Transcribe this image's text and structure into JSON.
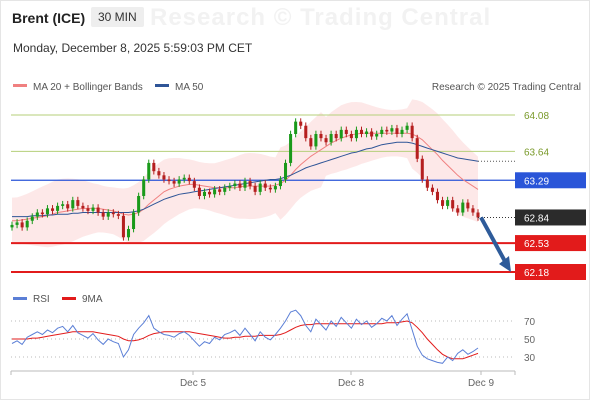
{
  "header": {
    "instrument": "Brent (ICE)",
    "interval": "30 MIN",
    "timestamp": "Monday, December 8, 2025 5:59:03 PM CET",
    "watermark": "Research © Trading Central",
    "copyright": "Research © 2025 Trading Central"
  },
  "legend": {
    "ma20": "MA 20 + Bollinger Bands",
    "ma50": "MA 50",
    "rsi": "RSI",
    "ma9": "9MA"
  },
  "colors": {
    "ma20": "#f08080",
    "ma50": "#2f5597",
    "band": "#fde4e4",
    "up": "#1a9a1a",
    "down": "#b51f1f",
    "resistance": "#b5cf7a",
    "pivot": "#2a55d8",
    "support": "#e21b1b",
    "arrow": "#2e5b9a",
    "rsi": "#5b7fd6",
    "rsi_ma": "#e21b1b"
  },
  "chart_data": [
    {
      "type": "candlestick",
      "x_ticks": [
        "Dec 5",
        "Dec 8",
        "Dec 9"
      ],
      "ylim": [
        62.1,
        64.1
      ],
      "levels": [
        {
          "value": 64.08,
          "label": "64.08",
          "kind": "resistance"
        },
        {
          "value": 63.64,
          "label": "63.64",
          "kind": "resistance"
        },
        {
          "value": 63.29,
          "label": "63.29",
          "kind": "pivot"
        },
        {
          "value": 62.53,
          "label": "62.53",
          "kind": "support"
        },
        {
          "value": 62.18,
          "label": "62.18",
          "kind": "support"
        }
      ],
      "last_price": {
        "value": 62.84,
        "label": "62.84"
      },
      "arrow": {
        "from": 62.84,
        "to": 62.18
      },
      "close": [
        62.75,
        62.78,
        62.72,
        62.8,
        62.85,
        62.9,
        62.88,
        62.95,
        62.92,
        62.98,
        63.0,
        62.95,
        63.05,
        62.98,
        62.95,
        62.92,
        62.96,
        62.9,
        62.85,
        62.9,
        62.88,
        62.86,
        62.6,
        62.7,
        62.9,
        63.1,
        63.3,
        63.5,
        63.4,
        63.35,
        63.3,
        63.28,
        63.25,
        63.3,
        63.32,
        63.28,
        63.2,
        63.1,
        63.15,
        63.12,
        63.18,
        63.15,
        63.2,
        63.22,
        63.25,
        63.2,
        63.28,
        63.22,
        63.15,
        63.25,
        63.2,
        63.18,
        63.22,
        63.3,
        63.5,
        63.85,
        64.0,
        63.95,
        63.8,
        63.7,
        63.85,
        63.8,
        63.75,
        63.85,
        63.8,
        63.9,
        63.85,
        63.8,
        63.9,
        63.85,
        63.88,
        63.82,
        63.85,
        63.9,
        63.88,
        63.92,
        63.85,
        63.9,
        63.95,
        63.8,
        63.55,
        63.3,
        63.2,
        63.15,
        63.05,
        62.98,
        63.05,
        62.95,
        62.9,
        63.02,
        62.95,
        62.9,
        62.84
      ],
      "open": [
        62.72,
        62.75,
        62.78,
        62.72,
        62.8,
        62.85,
        62.9,
        62.88,
        62.95,
        62.92,
        62.98,
        63.0,
        62.95,
        63.05,
        62.98,
        62.95,
        62.92,
        62.96,
        62.9,
        62.85,
        62.9,
        62.88,
        62.86,
        62.6,
        62.7,
        62.9,
        63.1,
        63.3,
        63.5,
        63.4,
        63.35,
        63.3,
        63.28,
        63.25,
        63.3,
        63.32,
        63.28,
        63.2,
        63.1,
        63.15,
        63.12,
        63.18,
        63.15,
        63.2,
        63.22,
        63.25,
        63.2,
        63.28,
        63.22,
        63.15,
        63.25,
        63.2,
        63.18,
        63.22,
        63.3,
        63.5,
        63.85,
        64.0,
        63.95,
        63.8,
        63.7,
        63.85,
        63.8,
        63.75,
        63.85,
        63.8,
        63.9,
        63.85,
        63.8,
        63.9,
        63.85,
        63.88,
        63.82,
        63.85,
        63.9,
        63.88,
        63.92,
        63.85,
        63.9,
        63.95,
        63.8,
        63.55,
        63.3,
        63.2,
        63.15,
        63.05,
        62.98,
        63.05,
        62.95,
        62.9,
        63.02,
        62.95,
        62.9
      ],
      "ma20": [
        62.8,
        62.8,
        62.81,
        62.82,
        62.83,
        62.84,
        62.85,
        62.86,
        62.88,
        62.9,
        62.91,
        62.92,
        62.93,
        62.94,
        62.95,
        62.95,
        62.95,
        62.95,
        62.94,
        62.93,
        62.92,
        62.9,
        62.88,
        62.87,
        62.88,
        62.9,
        62.94,
        63.0,
        63.05,
        63.1,
        63.15,
        63.18,
        63.2,
        63.22,
        63.23,
        63.24,
        63.24,
        63.23,
        63.22,
        63.21,
        63.2,
        63.2,
        63.2,
        63.2,
        63.2,
        63.21,
        63.22,
        63.22,
        63.22,
        63.22,
        63.22,
        63.22,
        63.23,
        63.25,
        63.29,
        63.35,
        63.42,
        63.48,
        63.53,
        63.58,
        63.62,
        63.66,
        63.7,
        63.74,
        63.77,
        63.8,
        63.82,
        63.84,
        63.85,
        63.86,
        63.86,
        63.86,
        63.86,
        63.86,
        63.86,
        63.86,
        63.86,
        63.86,
        63.86,
        63.85,
        63.82,
        63.78,
        63.72,
        63.66,
        63.6,
        63.53,
        63.47,
        63.41,
        63.35,
        63.3,
        63.26,
        63.22,
        63.18
      ],
      "ma50": [
        62.85,
        62.85,
        62.85,
        62.85,
        62.86,
        62.86,
        62.86,
        62.87,
        62.87,
        62.88,
        62.88,
        62.88,
        62.89,
        62.89,
        62.9,
        62.9,
        62.9,
        62.9,
        62.9,
        62.9,
        62.9,
        62.9,
        62.9,
        62.9,
        62.91,
        62.92,
        62.94,
        62.97,
        63.0,
        63.03,
        63.06,
        63.08,
        63.1,
        63.12,
        63.13,
        63.14,
        63.15,
        63.16,
        63.17,
        63.18,
        63.19,
        63.2,
        63.21,
        63.22,
        63.23,
        63.24,
        63.25,
        63.26,
        63.27,
        63.28,
        63.29,
        63.3,
        63.3,
        63.31,
        63.33,
        63.35,
        63.38,
        63.41,
        63.44,
        63.46,
        63.48,
        63.5,
        63.52,
        63.54,
        63.56,
        63.58,
        63.6,
        63.62,
        63.63,
        63.65,
        63.67,
        63.68,
        63.7,
        63.72,
        63.73,
        63.74,
        63.75,
        63.75,
        63.75,
        63.74,
        63.72,
        63.7,
        63.68,
        63.66,
        63.64,
        63.62,
        63.6,
        63.58,
        63.56,
        63.55,
        63.54,
        63.53,
        63.52
      ],
      "ma50_extend_value": 63.52
    },
    {
      "type": "line",
      "series": [
        {
          "name": "RSI",
          "values": [
            45,
            48,
            44,
            52,
            55,
            58,
            55,
            60,
            57,
            62,
            64,
            58,
            65,
            57,
            54,
            51,
            56,
            49,
            44,
            50,
            47,
            45,
            30,
            38,
            55,
            62,
            68,
            76,
            62,
            58,
            55,
            54,
            52,
            56,
            58,
            54,
            48,
            42,
            47,
            45,
            52,
            49,
            55,
            57,
            60,
            54,
            62,
            55,
            48,
            58,
            52,
            49,
            55,
            62,
            70,
            80,
            82,
            76,
            65,
            58,
            72,
            66,
            60,
            70,
            64,
            74,
            68,
            62,
            72,
            66,
            70,
            63,
            67,
            73,
            70,
            76,
            65,
            72,
            78,
            60,
            42,
            32,
            28,
            26,
            24,
            23,
            30,
            26,
            34,
            38,
            33,
            36,
            40
          ]
        },
        {
          "name": "9MA",
          "values": [
            50,
            50,
            50,
            50,
            51,
            51,
            52,
            53,
            54,
            55,
            56,
            57,
            58,
            58,
            58,
            58,
            58,
            57,
            56,
            55,
            54,
            53,
            50,
            48,
            48,
            49,
            51,
            54,
            56,
            57,
            58,
            58,
            58,
            58,
            58,
            58,
            57,
            56,
            55,
            54,
            53,
            52,
            51,
            51,
            52,
            52,
            53,
            53,
            53,
            54,
            54,
            54,
            54,
            55,
            57,
            60,
            63,
            65,
            66,
            66,
            67,
            67,
            67,
            67,
            67,
            67,
            67,
            67,
            67,
            67,
            67,
            67,
            67,
            67,
            68,
            68,
            68,
            69,
            70,
            68,
            63,
            57,
            50,
            44,
            38,
            33,
            30,
            28,
            28,
            28,
            30,
            32,
            34
          ]
        }
      ],
      "y_ticks": [
        "70",
        "50",
        "30"
      ],
      "ylim": [
        20,
        90
      ],
      "levels": [
        70,
        50,
        30
      ]
    }
  ]
}
